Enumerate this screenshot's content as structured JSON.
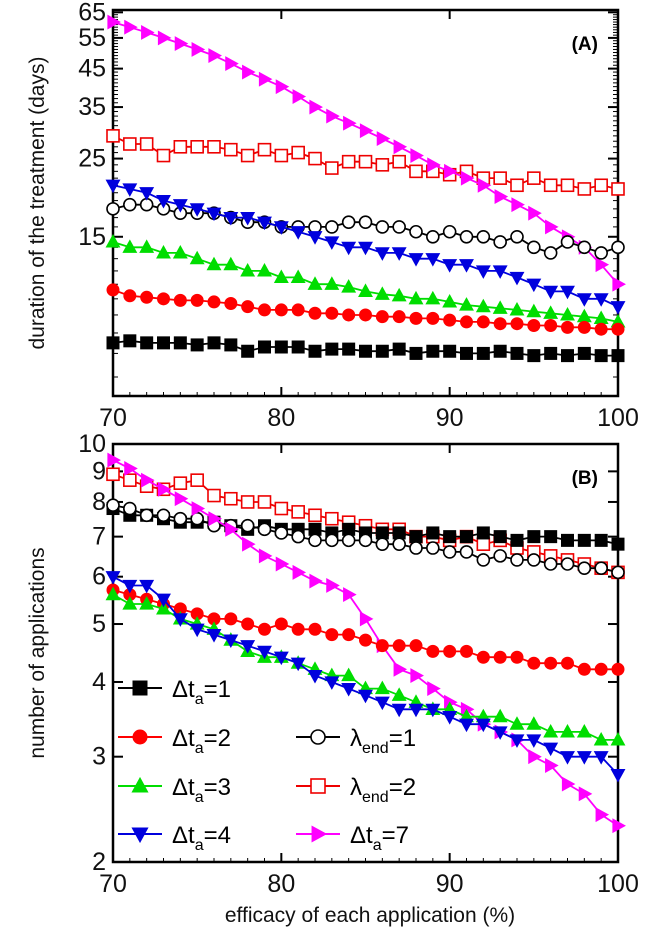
{
  "xlabel": "efficacy of each application (%)",
  "legend": [
    {
      "series": "dta1",
      "text": "Δt",
      "sub": "a",
      "suffix": "=1"
    },
    {
      "series": "dta2",
      "text": "Δt",
      "sub": "a",
      "suffix": "=2"
    },
    {
      "series": "dta3",
      "text": "Δt",
      "sub": "a",
      "suffix": "=3"
    },
    {
      "series": "dta4",
      "text": "Δt",
      "sub": "a",
      "suffix": "=4"
    },
    {
      "series": "lam1",
      "text": "λ",
      "sub": "end",
      "suffix": "=1"
    },
    {
      "series": "lam2",
      "text": "λ",
      "sub": "end",
      "suffix": "=2"
    },
    {
      "series": "dta7",
      "text": "Δt",
      "sub": "a",
      "suffix": "=7"
    }
  ],
  "series_style": {
    "dta1": {
      "color": "#000000",
      "marker": "square",
      "filled": true
    },
    "dta2": {
      "color": "#ff0000",
      "marker": "circle",
      "filled": true
    },
    "dta3": {
      "color": "#00dd00",
      "marker": "triangle-up",
      "filled": true
    },
    "dta4": {
      "color": "#0000dd",
      "marker": "triangle-down",
      "filled": true
    },
    "lam1": {
      "color": "#000000",
      "marker": "circle",
      "filled": false
    },
    "lam2": {
      "color": "#ee0000",
      "marker": "square",
      "filled": false
    },
    "dta7": {
      "color": "#ff00ff",
      "marker": "triangle-right",
      "filled": true
    }
  },
  "chart_data": [
    {
      "type": "line",
      "panel": "(A)",
      "ylabel": "duration of the treatment (days)",
      "yscale": "log",
      "xlim": [
        70,
        100
      ],
      "ylim": [
        5.3,
        66
      ],
      "x_ticks": [
        70,
        80,
        90,
        100
      ],
      "y_ticks": [
        15,
        25,
        35,
        45,
        55,
        65
      ],
      "x": [
        70,
        71,
        72,
        73,
        74,
        75,
        76,
        77,
        78,
        79,
        80,
        81,
        82,
        83,
        84,
        85,
        86,
        87,
        88,
        89,
        90,
        91,
        92,
        93,
        94,
        95,
        96,
        97,
        98,
        99,
        100
      ],
      "series": [
        {
          "key": "lam2",
          "values": [
            29,
            27.5,
            27.5,
            25.5,
            27,
            27,
            27,
            26.5,
            25.5,
            26.5,
            25.5,
            26,
            25,
            23.5,
            24.5,
            24.5,
            24,
            24.5,
            23,
            23,
            22.5,
            23,
            22,
            22,
            21,
            22,
            21,
            21,
            20.5,
            21,
            20.5
          ]
        },
        {
          "key": "dta7",
          "values": [
            61,
            59,
            57,
            55,
            53,
            51,
            49,
            46.5,
            44,
            42,
            40,
            37.5,
            35,
            33,
            31.5,
            30,
            28.5,
            27,
            25.5,
            24,
            23,
            22,
            21,
            19.5,
            18.5,
            17.5,
            16,
            15,
            14,
            12.5,
            11
          ]
        },
        {
          "key": "lam1",
          "values": [
            18,
            18.5,
            18.5,
            18,
            17.5,
            17.5,
            17.5,
            17,
            16.5,
            16.5,
            16,
            16,
            16,
            16,
            16.5,
            16.5,
            16,
            16,
            15.5,
            15,
            15.5,
            15,
            15,
            14.5,
            15,
            14,
            13.5,
            14.5,
            14,
            13.5,
            14
          ]
        },
        {
          "key": "dta4",
          "values": [
            21,
            20.5,
            20,
            19,
            18.5,
            18,
            17.5,
            17,
            17,
            16.5,
            16,
            15.5,
            15,
            14.5,
            14,
            14,
            13.5,
            13.5,
            13,
            13,
            12.5,
            12.5,
            12,
            12,
            11.5,
            11,
            10.5,
            10.5,
            10,
            10,
            9.5
          ]
        },
        {
          "key": "dta3",
          "values": [
            14.5,
            14,
            14,
            13.5,
            13.5,
            13,
            12.5,
            12.5,
            12,
            12,
            11.5,
            11.5,
            11,
            11,
            10.8,
            10.5,
            10.3,
            10.2,
            10,
            10,
            9.8,
            9.6,
            9.5,
            9.4,
            9.3,
            9.2,
            9.1,
            9,
            8.9,
            8.8,
            8.6
          ]
        },
        {
          "key": "dta2",
          "values": [
            10.6,
            10.2,
            10.1,
            10,
            9.9,
            9.9,
            9.8,
            9.7,
            9.5,
            9.3,
            9.3,
            9.3,
            9.1,
            9.1,
            9,
            9,
            8.9,
            8.9,
            8.8,
            8.8,
            8.7,
            8.6,
            8.6,
            8.5,
            8.5,
            8.4,
            8.4,
            8.3,
            8.3,
            8.2,
            8.2
          ]
        },
        {
          "key": "dta1",
          "values": [
            7.5,
            7.6,
            7.5,
            7.5,
            7.5,
            7.4,
            7.5,
            7.4,
            7.1,
            7.3,
            7.3,
            7.3,
            7.1,
            7.2,
            7.2,
            7.1,
            7.1,
            7.2,
            7,
            7.1,
            7.1,
            7,
            7,
            7.1,
            7,
            6.9,
            7,
            6.9,
            7,
            6.9,
            6.9
          ]
        }
      ]
    },
    {
      "type": "line",
      "panel": "(B)",
      "ylabel": "number of applications",
      "yscale": "log",
      "xlim": [
        70,
        100
      ],
      "ylim": [
        2,
        10
      ],
      "x_ticks": [
        70,
        80,
        90,
        100
      ],
      "y_ticks": [
        2,
        3,
        4,
        5,
        6,
        7,
        8,
        9,
        10
      ],
      "x": [
        70,
        71,
        72,
        73,
        74,
        75,
        76,
        77,
        78,
        79,
        80,
        81,
        82,
        83,
        84,
        85,
        86,
        87,
        88,
        89,
        90,
        91,
        92,
        93,
        94,
        95,
        96,
        97,
        98,
        99,
        100
      ],
      "series": [
        {
          "key": "lam2",
          "values": [
            8.9,
            8.7,
            8.5,
            8.4,
            8.6,
            8.7,
            8.2,
            8.1,
            8,
            8,
            7.8,
            7.7,
            7.6,
            7.5,
            7.4,
            7.3,
            7.2,
            7.2,
            7,
            7,
            6.9,
            7,
            6.8,
            6.9,
            6.7,
            6.6,
            6.5,
            6.4,
            6.3,
            6.2,
            6.1
          ]
        },
        {
          "key": "dta1",
          "values": [
            7.8,
            7.6,
            7.6,
            7.5,
            7.4,
            7.4,
            7.4,
            7.3,
            7.2,
            7.3,
            7.2,
            7.2,
            7.2,
            7.1,
            7.2,
            7.1,
            7.1,
            7.1,
            7,
            7.1,
            7,
            7,
            7.1,
            7,
            6.9,
            7,
            7,
            6.9,
            6.9,
            6.9,
            6.8
          ]
        },
        {
          "key": "lam1",
          "values": [
            7.9,
            7.8,
            7.6,
            7.6,
            7.5,
            7.5,
            7.3,
            7.3,
            7.3,
            7.2,
            7.1,
            7,
            6.9,
            6.9,
            6.9,
            6.9,
            6.8,
            6.8,
            6.7,
            6.7,
            6.6,
            6.6,
            6.4,
            6.5,
            6.4,
            6.4,
            6.3,
            6.3,
            6.2,
            6.2,
            6.1
          ]
        },
        {
          "key": "dta7",
          "values": [
            9.4,
            9.1,
            8.7,
            8.4,
            8.1,
            7.8,
            7.5,
            7.2,
            6.8,
            6.5,
            6.3,
            6.1,
            5.9,
            5.8,
            5.6,
            5.1,
            4.6,
            4.2,
            4.1,
            3.9,
            3.7,
            3.6,
            3.4,
            3.3,
            3.2,
            3,
            2.9,
            2.7,
            2.6,
            2.4,
            2.3
          ]
        },
        {
          "key": "dta2",
          "values": [
            5.7,
            5.6,
            5.5,
            5.4,
            5.3,
            5.2,
            5.1,
            5.1,
            5,
            4.9,
            5,
            4.9,
            4.9,
            4.8,
            4.8,
            4.7,
            4.6,
            4.6,
            4.6,
            4.5,
            4.5,
            4.5,
            4.4,
            4.4,
            4.4,
            4.3,
            4.3,
            4.3,
            4.2,
            4.2,
            4.2
          ]
        },
        {
          "key": "dta3",
          "values": [
            5.6,
            5.4,
            5.4,
            5.3,
            5.1,
            5,
            4.9,
            4.7,
            4.5,
            4.4,
            4.4,
            4.3,
            4.2,
            4.1,
            4.1,
            3.9,
            3.9,
            3.8,
            3.7,
            3.6,
            3.6,
            3.5,
            3.5,
            3.5,
            3.4,
            3.4,
            3.3,
            3.3,
            3.3,
            3.2,
            3.2
          ]
        },
        {
          "key": "dta4",
          "values": [
            6,
            5.8,
            5.8,
            5.5,
            5.1,
            4.9,
            4.8,
            4.7,
            4.6,
            4.5,
            4.4,
            4.3,
            4.1,
            4,
            3.9,
            3.8,
            3.7,
            3.6,
            3.6,
            3.6,
            3.5,
            3.4,
            3.4,
            3.3,
            3.2,
            3.2,
            3.1,
            3,
            3,
            3,
            2.8
          ]
        }
      ]
    }
  ]
}
